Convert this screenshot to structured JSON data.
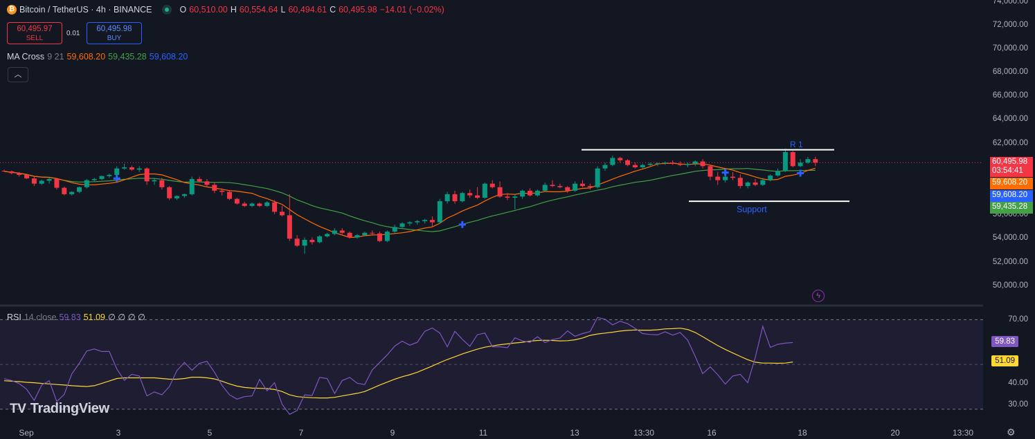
{
  "header": {
    "symbol_title": "Bitcoin / TetherUS · 4h · BINANCE",
    "ohlc": {
      "o_label": "O",
      "o": "60,510.00",
      "h_label": "H",
      "h": "60,554.64",
      "l_label": "L",
      "l": "60,494.61",
      "c_label": "C",
      "c": "60,495.98",
      "change": "−14.01 (−0.02%)"
    }
  },
  "trade": {
    "sell_price": "60,495.97",
    "sell_label": "SELL",
    "spread": "0.01",
    "buy_price": "60,495.98",
    "buy_label": "BUY"
  },
  "indicator_ma": {
    "name": "MA Cross",
    "params": "9 21",
    "v1": "59,608.20",
    "v2": "59,435.28",
    "v3": "59,608.20"
  },
  "indicator_rsi": {
    "name": "RSI",
    "params": "14 close",
    "v1": "59.83",
    "v2": "51.09",
    "extra": "∅ ∅ ∅ ∅"
  },
  "collapse_icon": "chevron-up-icon",
  "annotations": {
    "r1": "R 1",
    "support": "Support"
  },
  "price_axis": [
    "74,000.00",
    "72,000.00",
    "70,000.00",
    "68,000.00",
    "66,000.00",
    "64,000.00",
    "62,000.00",
    "56,000.00",
    "54,000.00",
    "52,000.00",
    "50,000.00"
  ],
  "price_tags": {
    "last": "60,495.98",
    "countdown": "03:54:41",
    "ma_fast": "59,608.20",
    "ma_fast2": "59,608.20",
    "ma_slow": "59,435.28"
  },
  "rsi_axis": [
    "70.00",
    "40.00",
    "30.00"
  ],
  "rsi_tags": {
    "rsi": "59.83",
    "ma": "51.09"
  },
  "time_axis": [
    "Sep",
    "3",
    "5",
    "7",
    "9",
    "11",
    "13",
    "13:30",
    "16",
    "18",
    "20",
    "13:30"
  ],
  "branding": "TradingView",
  "colors": {
    "up": "#089981",
    "down": "#f23645",
    "ma_fast": "#ff6d00",
    "ma_slow": "#43a047",
    "rsi": "#7e57c2",
    "rsi_ma": "#fdd835",
    "cross": "#2962ff"
  },
  "chart_data": {
    "type": "candlestick",
    "price_range": [
      48400,
      74400
    ],
    "candles": [
      [
        59800,
        59900,
        59700,
        59750
      ],
      [
        59750,
        59820,
        59500,
        59600
      ],
      [
        59600,
        59700,
        59300,
        59450
      ],
      [
        59450,
        59550,
        59100,
        59150
      ],
      [
        59150,
        59300,
        58500,
        58700
      ],
      [
        58700,
        59050,
        58600,
        58950
      ],
      [
        58950,
        59200,
        58700,
        59100
      ],
      [
        59100,
        59200,
        58200,
        58350
      ],
      [
        58350,
        58450,
        57700,
        57800
      ],
      [
        57800,
        58050,
        57700,
        58000
      ],
      [
        58000,
        58450,
        57900,
        58400
      ],
      [
        58400,
        59100,
        58300,
        59000
      ],
      [
        59000,
        59200,
        58900,
        59100
      ],
      [
        59100,
        59400,
        59000,
        59350
      ],
      [
        59350,
        59550,
        59200,
        59450
      ],
      [
        59450,
        60200,
        59350,
        60000
      ],
      [
        60000,
        60400,
        59900,
        60100
      ],
      [
        60100,
        60250,
        59800,
        59900
      ],
      [
        59900,
        60200,
        59700,
        60000
      ],
      [
        60000,
        60100,
        58600,
        58900
      ],
      [
        58900,
        59200,
        58600,
        59000
      ],
      [
        59000,
        59200,
        58200,
        58400
      ],
      [
        58400,
        58500,
        57300,
        57450
      ],
      [
        57450,
        57700,
        57300,
        57650
      ],
      [
        57650,
        57850,
        57500,
        57800
      ],
      [
        57800,
        59300,
        57700,
        59100
      ],
      [
        59100,
        59300,
        58800,
        58900
      ],
      [
        58900,
        59100,
        58400,
        58600
      ],
      [
        58600,
        58800,
        57900,
        58100
      ],
      [
        58100,
        58300,
        57700,
        58000
      ],
      [
        58000,
        58150,
        57300,
        57400
      ],
      [
        57400,
        57500,
        56900,
        57000
      ],
      [
        57000,
        57150,
        56700,
        56800
      ],
      [
        56800,
        57100,
        56700,
        57000
      ],
      [
        57000,
        57100,
        56700,
        56800
      ],
      [
        56800,
        57200,
        56700,
        57100
      ],
      [
        57100,
        57300,
        56100,
        56300
      ],
      [
        56300,
        56800,
        55900,
        56000
      ],
      [
        56000,
        57800,
        53800,
        54000
      ],
      [
        54000,
        54300,
        53300,
        53400
      ],
      [
        53400,
        54100,
        52700,
        53900
      ],
      [
        53900,
        54100,
        53500,
        53700
      ],
      [
        53700,
        54300,
        53600,
        54200
      ],
      [
        54200,
        54500,
        54100,
        54400
      ],
      [
        54400,
        54900,
        54300,
        54700
      ],
      [
        54700,
        54900,
        54400,
        54500
      ],
      [
        54500,
        54600,
        54000,
        54100
      ],
      [
        54100,
        54400,
        54000,
        54300
      ],
      [
        54300,
        54600,
        54200,
        54500
      ],
      [
        54500,
        54700,
        54300,
        54450
      ],
      [
        54450,
        54600,
        53700,
        53800
      ],
      [
        53800,
        54700,
        53700,
        54600
      ],
      [
        54600,
        55200,
        54500,
        55000
      ],
      [
        55000,
        55400,
        54900,
        55300
      ],
      [
        55300,
        55500,
        55100,
        55400
      ],
      [
        55400,
        55600,
        55200,
        55500
      ],
      [
        55500,
        55700,
        55300,
        55600
      ],
      [
        55600,
        55900,
        55000,
        55400
      ],
      [
        55400,
        57400,
        55300,
        57200
      ],
      [
        57200,
        58000,
        57000,
        57800
      ],
      [
        57800,
        58100,
        57000,
        57200
      ],
      [
        57200,
        58000,
        57100,
        57900
      ],
      [
        57900,
        58200,
        57500,
        57700
      ],
      [
        57700,
        58400,
        57400,
        57500
      ],
      [
        57500,
        58800,
        57400,
        58700
      ],
      [
        58700,
        59000,
        58300,
        58400
      ],
      [
        58400,
        58900,
        57500,
        57600
      ],
      [
        57600,
        57900,
        57300,
        57500
      ],
      [
        57500,
        57800,
        56500,
        57600
      ],
      [
        57600,
        58200,
        57400,
        58100
      ],
      [
        58100,
        58300,
        57600,
        57700
      ],
      [
        57700,
        58200,
        57600,
        58100
      ],
      [
        58100,
        58800,
        58000,
        58600
      ],
      [
        58600,
        59000,
        58400,
        58500
      ],
      [
        58500,
        58700,
        58300,
        58400
      ],
      [
        58400,
        58500,
        57900,
        58100
      ],
      [
        58100,
        58900,
        58000,
        58700
      ],
      [
        58700,
        59000,
        58400,
        58500
      ],
      [
        58500,
        58700,
        58200,
        58400
      ],
      [
        58400,
        60200,
        58300,
        60000
      ],
      [
        60000,
        60500,
        59800,
        60300
      ],
      [
        60300,
        61100,
        60200,
        60900
      ],
      [
        60900,
        61000,
        60500,
        60700
      ],
      [
        60700,
        60800,
        60200,
        60300
      ],
      [
        60300,
        60500,
        60000,
        60100
      ],
      [
        60100,
        60400,
        60000,
        60300
      ],
      [
        60300,
        60500,
        60200,
        60400
      ],
      [
        60400,
        60500,
        60200,
        60450
      ],
      [
        60450,
        60600,
        60300,
        60500
      ],
      [
        60500,
        60700,
        60300,
        60400
      ],
      [
        60400,
        60600,
        60200,
        60300
      ],
      [
        60300,
        60500,
        60100,
        60400
      ],
      [
        60400,
        60700,
        60200,
        60600
      ],
      [
        60600,
        60800,
        60000,
        60200
      ],
      [
        60200,
        60300,
        59000,
        59300
      ],
      [
        59300,
        59700,
        58600,
        59000
      ],
      [
        59000,
        59400,
        58800,
        59300
      ],
      [
        59300,
        59700,
        59000,
        59200
      ],
      [
        59200,
        59500,
        58300,
        58500
      ],
      [
        58500,
        58900,
        58300,
        58800
      ],
      [
        58800,
        59100,
        58500,
        58600
      ],
      [
        58600,
        59200,
        58500,
        59000
      ],
      [
        59000,
        59500,
        58900,
        59400
      ],
      [
        59400,
        60000,
        59300,
        59800
      ],
      [
        59800,
        61700,
        59700,
        61400
      ],
      [
        61400,
        61500,
        60100,
        60200
      ],
      [
        60200,
        60800,
        60100,
        60500
      ],
      [
        60500,
        61000,
        60400,
        60800
      ],
      [
        60800,
        61000,
        60200,
        60500
      ]
    ],
    "ma_cross_crosses": [
      [
        15,
        59150
      ],
      [
        61,
        55200
      ],
      [
        96,
        59650
      ],
      [
        106,
        59600
      ]
    ],
    "resistance": {
      "label": "R 1",
      "price": 61600
    },
    "support": {
      "label": "Support",
      "price": 57200
    },
    "rsi_range": [
      25,
      76
    ],
    "rsi": [
      43.6,
      42.8,
      41.4,
      38.9,
      33.9,
      40.8,
      42.7,
      33.4,
      36.6,
      45.7,
      50.5,
      56.0,
      56.9,
      55.8,
      55.8,
      47.9,
      42.9,
      45.6,
      44.8,
      35.9,
      37.7,
      36.4,
      40.1,
      47.2,
      50.9,
      47.4,
      50.5,
      51.4,
      46.5,
      40.7,
      36.4,
      34.5,
      35.6,
      35.9,
      43.3,
      38.2,
      41.8,
      32.2,
      27.7,
      29.4,
      36.4,
      36.1,
      44.2,
      43.7,
      37.0,
      42.8,
      44.2,
      41.6,
      41.0,
      47.5,
      50.9,
      54.3,
      58.2,
      60.4,
      58.6,
      59.9,
      64.8,
      66.3,
      64.0,
      57.9,
      64.8,
      61.2,
      58.1,
      63.3,
      64.0,
      57.9,
      57.9,
      57.5,
      61.9,
      60.5,
      59.8,
      62.4,
      59.8,
      61.1,
      61.8,
      65.0,
      62.6,
      63.8,
      64.7,
      71.0,
      70.2,
      67.7,
      69.3,
      68.2,
      66.1,
      63.8,
      63.4,
      63.2,
      64.6,
      63.1,
      64.3,
      60.8,
      53.6,
      45.9,
      48.9,
      45.4,
      41.2,
      44.8,
      45.6,
      41.8,
      53.2,
      67.0,
      57.6,
      59.0,
      59.5,
      59.8
    ],
    "rsi_ma": [
      42.7,
      42.5,
      42.3,
      42.0,
      41.8,
      41.5,
      41.3,
      41.0,
      40.8,
      40.5,
      40.3,
      40.1,
      40.5,
      41.5,
      42.6,
      43.7,
      44.0,
      44.0,
      44.0,
      44.0,
      44.0,
      43.7,
      43.4,
      43.4,
      43.7,
      44.3,
      44.3,
      44.0,
      43.5,
      42.5,
      41.3,
      40.3,
      39.7,
      39.4,
      39.3,
      39.2,
      38.8,
      37.9,
      36.4,
      35.6,
      35.3,
      35.1,
      35.0,
      35.0,
      35.3,
      35.9,
      36.5,
      37.1,
      37.9,
      39.3,
      40.8,
      42.1,
      43.4,
      44.5,
      45.4,
      46.5,
      47.9,
      49.3,
      50.8,
      52.2,
      53.4,
      54.7,
      55.8,
      56.8,
      57.7,
      58.3,
      58.8,
      59.2,
      59.6,
      59.9,
      60.4,
      60.7,
      60.8,
      60.7,
      60.5,
      60.6,
      61.0,
      61.8,
      63.0,
      63.6,
      64.0,
      64.4,
      64.9,
      65.2,
      65.4,
      65.3,
      65.3,
      65.5,
      65.9,
      66.0,
      66.2,
      65.6,
      64.3,
      62.4,
      60.4,
      58.4,
      56.7,
      55.1,
      53.6,
      52.1,
      51.0,
      50.6,
      50.6,
      50.5,
      50.6,
      51.09
    ]
  }
}
